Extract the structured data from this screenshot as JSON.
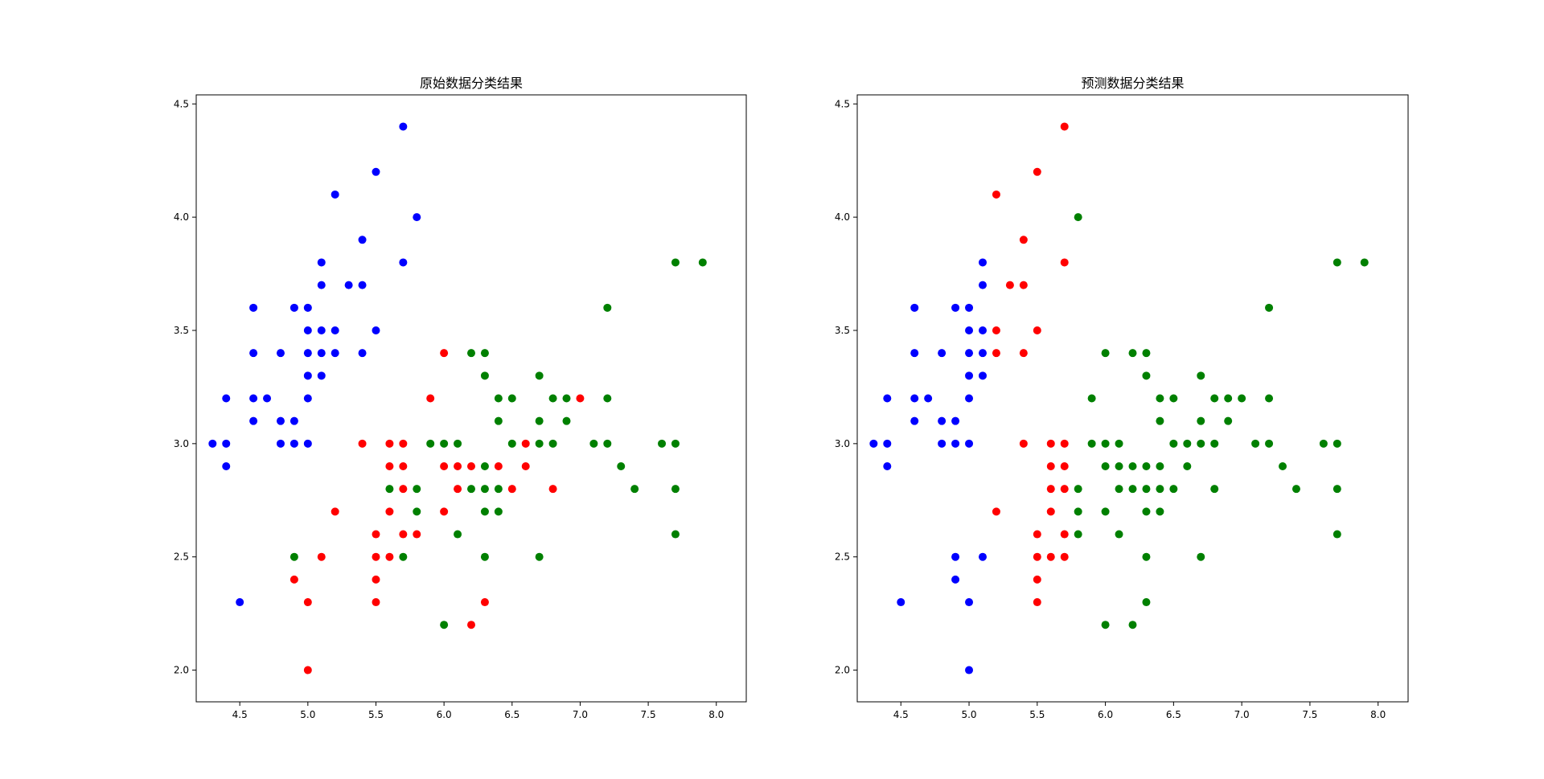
{
  "colors": {
    "setosa": "#0000ff",
    "versicolor": "#ff0000",
    "virginica": "#008000",
    "frame": "#000000"
  },
  "chart_data": [
    {
      "type": "scatter",
      "title": "原始数据分类结果",
      "xlabel": "",
      "ylabel": "",
      "xlim": [
        4.18,
        8.22
      ],
      "ylim": [
        1.86,
        4.54
      ],
      "xticks": [
        "4.5",
        "5.0",
        "5.5",
        "6.0",
        "6.5",
        "7.0",
        "7.5",
        "8.0"
      ],
      "yticks": [
        "2.0",
        "2.5",
        "3.0",
        "3.5",
        "4.0",
        "4.5"
      ],
      "grid": false,
      "series": [
        {
          "color": "#0000ff",
          "points": [
            [
              4.3,
              3.0
            ],
            [
              4.4,
              3.0
            ],
            [
              4.4,
              3.2
            ],
            [
              4.4,
              2.9
            ],
            [
              4.5,
              2.3
            ],
            [
              4.6,
              3.6
            ],
            [
              4.6,
              3.4
            ],
            [
              4.6,
              3.2
            ],
            [
              4.6,
              3.1
            ],
            [
              4.7,
              3.2
            ],
            [
              4.8,
              3.4
            ],
            [
              4.8,
              3.1
            ],
            [
              4.8,
              3.0
            ],
            [
              4.9,
              3.6
            ],
            [
              4.9,
              3.1
            ],
            [
              4.9,
              3.0
            ],
            [
              5.0,
              3.6
            ],
            [
              5.0,
              3.5
            ],
            [
              5.0,
              3.4
            ],
            [
              5.0,
              3.3
            ],
            [
              5.0,
              3.2
            ],
            [
              5.0,
              3.0
            ],
            [
              5.1,
              3.8
            ],
            [
              5.1,
              3.7
            ],
            [
              5.1,
              3.5
            ],
            [
              5.1,
              3.4
            ],
            [
              5.1,
              3.3
            ],
            [
              5.2,
              4.1
            ],
            [
              5.2,
              3.5
            ],
            [
              5.2,
              3.4
            ],
            [
              5.3,
              3.7
            ],
            [
              5.4,
              3.9
            ],
            [
              5.4,
              3.7
            ],
            [
              5.4,
              3.4
            ],
            [
              5.5,
              4.2
            ],
            [
              5.5,
              3.5
            ],
            [
              5.7,
              4.4
            ],
            [
              5.7,
              3.8
            ],
            [
              5.8,
              4.0
            ]
          ]
        },
        {
          "color": "#ff0000",
          "points": [
            [
              4.9,
              2.4
            ],
            [
              5.0,
              2.3
            ],
            [
              5.0,
              2.0
            ],
            [
              5.1,
              2.5
            ],
            [
              5.2,
              2.7
            ],
            [
              5.4,
              3.0
            ],
            [
              5.5,
              2.6
            ],
            [
              5.5,
              2.5
            ],
            [
              5.5,
              2.4
            ],
            [
              5.5,
              2.3
            ],
            [
              5.6,
              3.0
            ],
            [
              5.6,
              2.9
            ],
            [
              5.6,
              2.7
            ],
            [
              5.6,
              2.5
            ],
            [
              5.7,
              3.0
            ],
            [
              5.7,
              2.9
            ],
            [
              5.7,
              2.8
            ],
            [
              5.7,
              2.6
            ],
            [
              5.8,
              2.6
            ],
            [
              5.9,
              3.2
            ],
            [
              6.0,
              3.4
            ],
            [
              6.0,
              2.9
            ],
            [
              6.0,
              2.7
            ],
            [
              6.1,
              2.9
            ],
            [
              6.1,
              2.8
            ],
            [
              6.2,
              2.9
            ],
            [
              6.2,
              2.2
            ],
            [
              6.3,
              2.3
            ],
            [
              6.4,
              2.9
            ],
            [
              6.5,
              2.8
            ],
            [
              6.6,
              3.0
            ],
            [
              6.6,
              2.9
            ],
            [
              6.8,
              2.8
            ],
            [
              7.0,
              3.2
            ]
          ]
        },
        {
          "color": "#008000",
          "points": [
            [
              4.9,
              2.5
            ],
            [
              5.6,
              2.8
            ],
            [
              5.7,
              2.5
            ],
            [
              5.8,
              2.8
            ],
            [
              5.8,
              2.7
            ],
            [
              5.9,
              3.0
            ],
            [
              6.0,
              3.0
            ],
            [
              6.0,
              2.2
            ],
            [
              6.1,
              3.0
            ],
            [
              6.1,
              2.6
            ],
            [
              6.2,
              3.4
            ],
            [
              6.2,
              2.8
            ],
            [
              6.3,
              3.4
            ],
            [
              6.3,
              3.3
            ],
            [
              6.3,
              2.9
            ],
            [
              6.3,
              2.8
            ],
            [
              6.3,
              2.7
            ],
            [
              6.3,
              2.5
            ],
            [
              6.4,
              3.2
            ],
            [
              6.4,
              3.1
            ],
            [
              6.4,
              2.8
            ],
            [
              6.4,
              2.7
            ],
            [
              6.5,
              3.2
            ],
            [
              6.5,
              3.0
            ],
            [
              6.7,
              3.3
            ],
            [
              6.7,
              3.1
            ],
            [
              6.7,
              3.0
            ],
            [
              6.7,
              2.5
            ],
            [
              6.8,
              3.2
            ],
            [
              6.8,
              3.0
            ],
            [
              6.9,
              3.2
            ],
            [
              6.9,
              3.1
            ],
            [
              7.1,
              3.0
            ],
            [
              7.2,
              3.6
            ],
            [
              7.2,
              3.2
            ],
            [
              7.2,
              3.0
            ],
            [
              7.3,
              2.9
            ],
            [
              7.4,
              2.8
            ],
            [
              7.6,
              3.0
            ],
            [
              7.7,
              3.8
            ],
            [
              7.7,
              3.0
            ],
            [
              7.7,
              2.8
            ],
            [
              7.7,
              2.6
            ],
            [
              7.9,
              3.8
            ]
          ]
        }
      ]
    },
    {
      "type": "scatter",
      "title": "预测数据分类结果",
      "xlabel": "",
      "ylabel": "",
      "xlim": [
        4.18,
        8.22
      ],
      "ylim": [
        1.86,
        4.54
      ],
      "xticks": [
        "4.5",
        "5.0",
        "5.5",
        "6.0",
        "6.5",
        "7.0",
        "7.5",
        "8.0"
      ],
      "yticks": [
        "2.0",
        "2.5",
        "3.0",
        "3.5",
        "4.0",
        "4.5"
      ],
      "grid": false,
      "series": [
        {
          "color": "#0000ff",
          "points": [
            [
              4.3,
              3.0
            ],
            [
              4.4,
              3.0
            ],
            [
              4.4,
              3.2
            ],
            [
              4.4,
              2.9
            ],
            [
              4.5,
              2.3
            ],
            [
              4.6,
              3.6
            ],
            [
              4.6,
              3.4
            ],
            [
              4.6,
              3.2
            ],
            [
              4.6,
              3.1
            ],
            [
              4.7,
              3.2
            ],
            [
              4.8,
              3.4
            ],
            [
              4.8,
              3.1
            ],
            [
              4.8,
              3.0
            ],
            [
              4.9,
              3.6
            ],
            [
              4.9,
              3.1
            ],
            [
              4.9,
              3.0
            ],
            [
              4.9,
              2.5
            ],
            [
              4.9,
              2.4
            ],
            [
              5.0,
              3.6
            ],
            [
              5.0,
              3.5
            ],
            [
              5.0,
              3.4
            ],
            [
              5.0,
              3.3
            ],
            [
              5.0,
              3.2
            ],
            [
              5.0,
              3.0
            ],
            [
              5.0,
              2.3
            ],
            [
              5.0,
              2.0
            ],
            [
              5.1,
              3.8
            ],
            [
              5.1,
              3.7
            ],
            [
              5.1,
              3.5
            ],
            [
              5.1,
              3.4
            ],
            [
              5.1,
              3.3
            ],
            [
              5.1,
              2.5
            ]
          ]
        },
        {
          "color": "#ff0000",
          "points": [
            [
              5.2,
              4.1
            ],
            [
              5.2,
              3.5
            ],
            [
              5.2,
              3.4
            ],
            [
              5.2,
              2.7
            ],
            [
              5.3,
              3.7
            ],
            [
              5.4,
              3.9
            ],
            [
              5.4,
              3.7
            ],
            [
              5.4,
              3.4
            ],
            [
              5.4,
              3.0
            ],
            [
              5.5,
              4.2
            ],
            [
              5.5,
              3.5
            ],
            [
              5.5,
              2.6
            ],
            [
              5.5,
              2.5
            ],
            [
              5.5,
              2.4
            ],
            [
              5.5,
              2.3
            ],
            [
              5.6,
              3.0
            ],
            [
              5.6,
              2.9
            ],
            [
              5.6,
              2.8
            ],
            [
              5.6,
              2.7
            ],
            [
              5.6,
              2.5
            ],
            [
              5.7,
              4.4
            ],
            [
              5.7,
              3.8
            ],
            [
              5.7,
              3.0
            ],
            [
              5.7,
              2.9
            ],
            [
              5.7,
              2.8
            ],
            [
              5.7,
              2.6
            ],
            [
              5.7,
              2.5
            ]
          ]
        },
        {
          "color": "#008000",
          "points": [
            [
              5.8,
              4.0
            ],
            [
              5.8,
              2.8
            ],
            [
              5.8,
              2.7
            ],
            [
              5.8,
              2.6
            ],
            [
              5.9,
              3.2
            ],
            [
              5.9,
              3.0
            ],
            [
              6.0,
              3.4
            ],
            [
              6.0,
              3.0
            ],
            [
              6.0,
              2.9
            ],
            [
              6.0,
              2.7
            ],
            [
              6.0,
              2.2
            ],
            [
              6.1,
              3.0
            ],
            [
              6.1,
              2.9
            ],
            [
              6.1,
              2.8
            ],
            [
              6.1,
              2.6
            ],
            [
              6.2,
              3.4
            ],
            [
              6.2,
              2.9
            ],
            [
              6.2,
              2.8
            ],
            [
              6.2,
              2.2
            ],
            [
              6.3,
              3.4
            ],
            [
              6.3,
              3.3
            ],
            [
              6.3,
              2.9
            ],
            [
              6.3,
              2.8
            ],
            [
              6.3,
              2.7
            ],
            [
              6.3,
              2.5
            ],
            [
              6.3,
              2.3
            ],
            [
              6.4,
              3.2
            ],
            [
              6.4,
              3.1
            ],
            [
              6.4,
              2.9
            ],
            [
              6.4,
              2.8
            ],
            [
              6.4,
              2.7
            ],
            [
              6.5,
              3.2
            ],
            [
              6.5,
              3.0
            ],
            [
              6.5,
              2.8
            ],
            [
              6.6,
              3.0
            ],
            [
              6.6,
              2.9
            ],
            [
              6.7,
              3.3
            ],
            [
              6.7,
              3.1
            ],
            [
              6.7,
              3.0
            ],
            [
              6.7,
              2.5
            ],
            [
              6.8,
              3.2
            ],
            [
              6.8,
              3.0
            ],
            [
              6.8,
              2.8
            ],
            [
              6.9,
              3.2
            ],
            [
              6.9,
              3.1
            ],
            [
              7.0,
              3.2
            ],
            [
              7.1,
              3.0
            ],
            [
              7.2,
              3.6
            ],
            [
              7.2,
              3.2
            ],
            [
              7.2,
              3.0
            ],
            [
              7.3,
              2.9
            ],
            [
              7.4,
              2.8
            ],
            [
              7.6,
              3.0
            ],
            [
              7.7,
              3.8
            ],
            [
              7.7,
              3.0
            ],
            [
              7.7,
              2.8
            ],
            [
              7.7,
              2.6
            ],
            [
              7.9,
              3.8
            ]
          ]
        }
      ]
    }
  ]
}
